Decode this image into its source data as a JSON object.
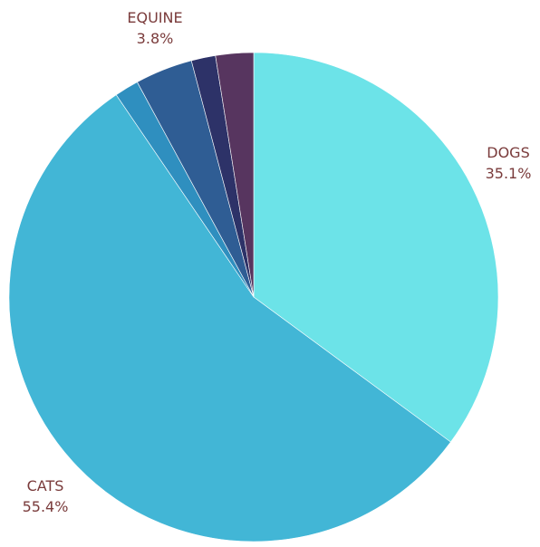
{
  "chart_data": {
    "type": "pie",
    "start_angle_deg": 0,
    "direction": "clockwise",
    "slices": [
      {
        "key": "dogs",
        "label": "DOGS",
        "value": 35.1,
        "value_text": "35.1%",
        "color": "#6ce3e8"
      },
      {
        "key": "cats",
        "label": "CATS",
        "value": 55.4,
        "value_text": "55.4%",
        "color": "#42b6d6"
      },
      {
        "key": "other1",
        "label": "",
        "value": 1.6,
        "value_text": "",
        "color": "#2f8fbf"
      },
      {
        "key": "equine",
        "label": "EQUINE",
        "value": 3.8,
        "value_text": "3.8%",
        "color": "#2f5d94"
      },
      {
        "key": "other2",
        "label": "",
        "value": 1.6,
        "value_text": "",
        "color": "#2d3268"
      },
      {
        "key": "other3",
        "label": "",
        "value": 2.5,
        "value_text": "",
        "color": "#57355f"
      }
    ]
  },
  "labels": {
    "dogs": {
      "name": "DOGS",
      "pct": "35.1%"
    },
    "cats": {
      "name": "CATS",
      "pct": "55.4%"
    },
    "equine": {
      "name": "EQUINE",
      "pct": "3.8%"
    }
  }
}
